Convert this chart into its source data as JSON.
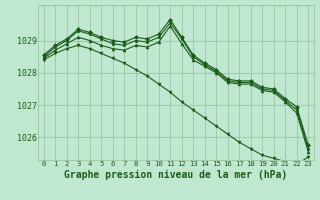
{
  "background_color": "#c0e8d0",
  "grid_color": "#99bb99",
  "line_color": "#1a5c1a",
  "marker_color": "#1a5c1a",
  "xlabel": "Graphe pression niveau de la mer (hPa)",
  "xlabel_fontsize": 7,
  "tick_fontsize": 6,
  "ylim": [
    1025.3,
    1030.1
  ],
  "xlim": [
    -0.5,
    23.5
  ],
  "yticks": [
    1026,
    1027,
    1028,
    1029
  ],
  "xticks": [
    0,
    1,
    2,
    3,
    4,
    5,
    6,
    7,
    8,
    9,
    10,
    11,
    12,
    13,
    14,
    15,
    16,
    17,
    18,
    19,
    20,
    21,
    22,
    23
  ],
  "series": [
    {
      "x": [
        0,
        1,
        2,
        3,
        4,
        5,
        6,
        7,
        8,
        9,
        10,
        11,
        12,
        13,
        14,
        15,
        16,
        17,
        18,
        19,
        20,
        21,
        22,
        23
      ],
      "y": [
        1028.55,
        1028.85,
        1029.05,
        1029.35,
        1029.25,
        1029.1,
        1029.0,
        1028.95,
        1029.1,
        1029.05,
        1029.2,
        1029.65,
        1029.1,
        1028.55,
        1028.3,
        1028.1,
        1027.8,
        1027.75,
        1027.75,
        1027.55,
        1027.5,
        1027.2,
        1026.95,
        1025.75
      ],
      "marker": "D",
      "markersize": 2.0,
      "lw": 0.8
    },
    {
      "x": [
        0,
        1,
        2,
        3,
        4,
        5,
        6,
        7,
        8,
        9,
        10,
        11,
        12,
        13,
        14,
        15,
        16,
        17,
        18,
        19,
        20,
        21,
        22,
        23
      ],
      "y": [
        1028.5,
        1028.8,
        1029.0,
        1029.3,
        1029.2,
        1029.05,
        1028.9,
        1028.85,
        1029.0,
        1028.95,
        1029.1,
        1029.55,
        1029.05,
        1028.5,
        1028.25,
        1028.05,
        1027.75,
        1027.7,
        1027.7,
        1027.5,
        1027.45,
        1027.15,
        1026.85,
        1025.65
      ],
      "marker": "s",
      "markersize": 1.8,
      "lw": 0.8
    },
    {
      "x": [
        0,
        1,
        2,
        3,
        4,
        5,
        6,
        7,
        8,
        9,
        10,
        11,
        12,
        13,
        14,
        15,
        16,
        17,
        18,
        19,
        20,
        21,
        22,
        23
      ],
      "y": [
        1028.45,
        1028.7,
        1028.9,
        1029.1,
        1029.0,
        1028.85,
        1028.75,
        1028.7,
        1028.85,
        1028.8,
        1028.95,
        1029.45,
        1028.9,
        1028.4,
        1028.2,
        1028.0,
        1027.7,
        1027.65,
        1027.65,
        1027.45,
        1027.4,
        1027.1,
        1026.75,
        1025.55
      ],
      "marker": "^",
      "markersize": 2.0,
      "lw": 0.8
    },
    {
      "x": [
        0,
        1,
        2,
        3,
        4,
        5,
        6,
        7,
        8,
        9,
        10,
        11,
        12,
        13,
        14,
        15,
        16,
        17,
        18,
        19,
        20,
        21,
        22,
        23
      ],
      "y": [
        1028.4,
        1028.6,
        1028.75,
        1028.85,
        1028.75,
        1028.6,
        1028.45,
        1028.3,
        1028.1,
        1027.9,
        1027.65,
        1027.4,
        1027.1,
        1026.85,
        1026.6,
        1026.35,
        1026.1,
        1025.85,
        1025.65,
        1025.45,
        1025.35,
        1025.25,
        1025.15,
        1025.4
      ],
      "marker": "v",
      "markersize": 2.0,
      "lw": 0.8
    }
  ]
}
